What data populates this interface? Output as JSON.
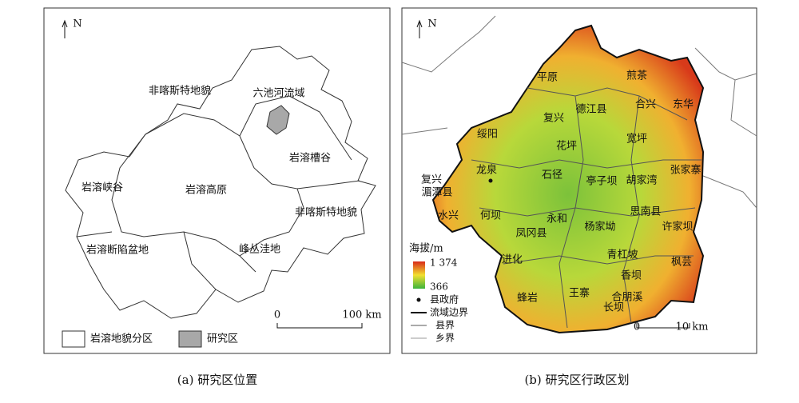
{
  "panel_a": {
    "north": "N",
    "regions": [
      "非喀斯特地貌",
      "六池河流域",
      "岩溶槽谷",
      "岩溶峡谷",
      "岩溶高原",
      "非喀斯特地貌",
      "岩溶断陷盆地",
      "峰丛洼地"
    ],
    "scale_zero": "0",
    "scale_label": "100 km",
    "legend": [
      "岩溶地貌分区",
      "研究区"
    ],
    "caption": "(a) 研究区位置"
  },
  "panel_b": {
    "north": "N",
    "towns": [
      "平原",
      "煎茶",
      "德江县",
      "合兴",
      "东华",
      "复兴",
      "绥阳",
      "花坪",
      "宽坪",
      "龙泉",
      "石径",
      "亭子坝",
      "胡家湾",
      "张家寨",
      "复兴",
      "湄潭县",
      "何坝",
      "永和",
      "思南县",
      "水兴",
      "杨家坳",
      "许家坝",
      "凤冈县",
      "青杠坡",
      "进化",
      "枫芸",
      "香坝",
      "蜂岩",
      "王寨",
      "合朋溪",
      "长坝"
    ],
    "legend": {
      "title": "海拔/m",
      "max": "1 374",
      "min": "366",
      "items": [
        "县政府",
        "流域边界",
        "县界",
        "乡界"
      ]
    },
    "scale_zero": "0",
    "scale_label": "10 km",
    "caption": "(b) 研究区行政区划"
  }
}
